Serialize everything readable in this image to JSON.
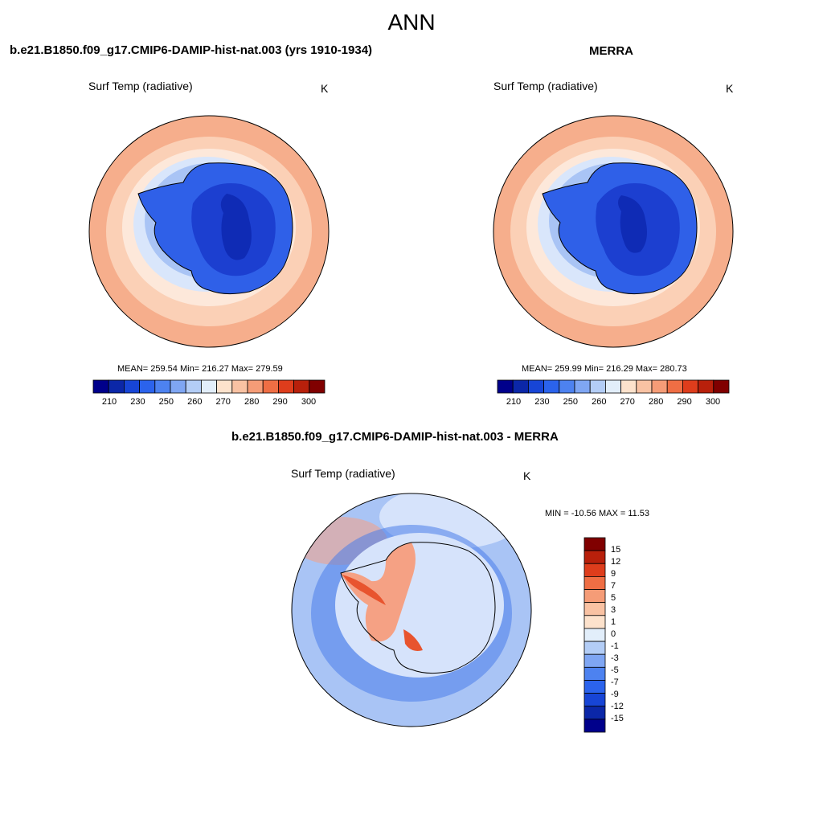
{
  "title": "ANN",
  "panels": [
    {
      "title": "b.e21.B1850.f09_g17.CMIP6-DAMIP-hist-nat.003 (yrs 1910-1934)",
      "variable": "Surf Temp (radiative)",
      "units": "K",
      "stats": "MEAN= 259.54  Min= 216.27  Max= 279.59"
    },
    {
      "title": "MERRA",
      "variable": "Surf Temp (radiative)",
      "units": "K",
      "stats": "MEAN= 259.99  Min= 216.29  Max= 280.73"
    },
    {
      "title": "b.e21.B1850.f09_g17.CMIP6-DAMIP-hist-nat.003 - MERRA",
      "variable": "Surf Temp (radiative)",
      "units": "K",
      "stats": "MIN = -10.56 MAX =  11.53"
    }
  ],
  "colorbar_abs": {
    "colors": [
      "#00008b",
      "#0b27a8",
      "#1745d6",
      "#2b63ec",
      "#4d82f0",
      "#7fa6f3",
      "#b3cdf6",
      "#e2eefa",
      "#fde2cc",
      "#f9c2a3",
      "#f59c77",
      "#ef6e44",
      "#de3d1c",
      "#b8200b",
      "#800000"
    ],
    "tick_labels": [
      "210",
      "230",
      "250",
      "260",
      "270",
      "280",
      "290",
      "300"
    ]
  },
  "colorbar_diff": {
    "colors": [
      "#00008b",
      "#0b27a8",
      "#1745d6",
      "#2b63ec",
      "#4d82f0",
      "#7fa6f3",
      "#b3cdf6",
      "#e2eefa",
      "#fde2cc",
      "#f9c2a3",
      "#f59c77",
      "#ef6e44",
      "#de3d1c",
      "#b8200b",
      "#800000"
    ],
    "tick_labels": [
      "15",
      "12",
      "9",
      "7",
      "5",
      "3",
      "1",
      "0",
      "-1",
      "-3",
      "-5",
      "-7",
      "-9",
      "-12",
      "-15"
    ]
  },
  "map_colors": {
    "abs_outer": "#f6ae8c",
    "abs_band": "#fbd0b6",
    "abs_ring1": "#fde8da",
    "abs_ring2": "#d9e6fb",
    "abs_ring3": "#a9c4f5",
    "abs_ice": "#2f60e8",
    "abs_core": "#1c3fd0",
    "abs_deep": "#0f2bb5",
    "diff_ocean": "#a9c4f5",
    "diff_light": "#d6e3fb",
    "diff_dark": "#4b7de9",
    "diff_warm": "#f5a184",
    "diff_hot": "#e8542e"
  }
}
